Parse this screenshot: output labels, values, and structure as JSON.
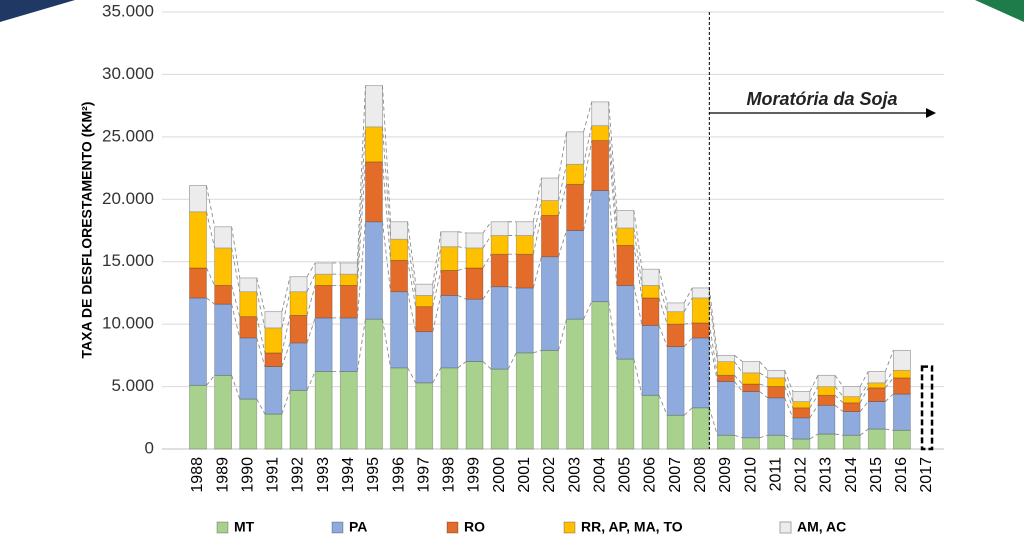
{
  "chart_data": {
    "type": "stacked-bar",
    "y_label": "TAXA DE DESFLORESTAMENTO (KM²)",
    "categories": [
      "1988",
      "1989",
      "1990",
      "1991",
      "1992",
      "1993",
      "1994",
      "1995",
      "1996",
      "1997",
      "1998",
      "1999",
      "2000",
      "2001",
      "2002",
      "2003",
      "2004",
      "2005",
      "2006",
      "2007",
      "2008",
      "2009",
      "2010",
      "2011",
      "2012",
      "2013",
      "2014",
      "2015",
      "2016",
      "2017"
    ],
    "series": [
      {
        "name": "MT",
        "color": "#a9d18e",
        "values": [
          5100,
          5900,
          4000,
          2800,
          4700,
          6200,
          6200,
          10400,
          6500,
          5300,
          6500,
          7000,
          6400,
          7700,
          7900,
          10400,
          11800,
          7200,
          4300,
          2700,
          3300,
          1100,
          900,
          1100,
          800,
          1200,
          1100,
          1600,
          1500,
          null
        ]
      },
      {
        "name": "PA",
        "color": "#8faadc",
        "values": [
          7000,
          5700,
          4900,
          3800,
          3800,
          4300,
          4300,
          7800,
          6100,
          4100,
          5800,
          5000,
          6600,
          5200,
          7500,
          7100,
          8900,
          5900,
          5600,
          5500,
          5600,
          4300,
          3700,
          3000,
          1700,
          2300,
          1900,
          2200,
          2900,
          null
        ]
      },
      {
        "name": "RO",
        "color": "#e46c2b",
        "values": [
          2400,
          1500,
          1700,
          1100,
          2200,
          2600,
          2600,
          4800,
          2500,
          2000,
          2000,
          2500,
          2600,
          2700,
          3300,
          3700,
          4000,
          3200,
          2200,
          1800,
          1200,
          500,
          600,
          900,
          800,
          800,
          700,
          1100,
          1300,
          null
        ]
      },
      {
        "name": "RR, AP, MA, TO",
        "color": "#ffc000",
        "values": [
          4500,
          3000,
          2000,
          2000,
          1900,
          900,
          900,
          2800,
          1700,
          900,
          1900,
          1600,
          1500,
          1500,
          1200,
          1600,
          1200,
          1400,
          1000,
          1000,
          2000,
          1100,
          900,
          700,
          500,
          700,
          500,
          400,
          600,
          null
        ]
      },
      {
        "name": "AM, AC",
        "color": "#ececec",
        "values": [
          2100,
          1700,
          1100,
          1300,
          1200,
          900,
          900,
          3300,
          1400,
          900,
          1200,
          1200,
          1100,
          1100,
          1800,
          2600,
          1900,
          1400,
          1300,
          700,
          800,
          500,
          900,
          600,
          800,
          900,
          800,
          900,
          1600,
          null
        ]
      }
    ],
    "outline_bar": {
      "category": "2017",
      "value": 6600
    },
    "annotation": {
      "text": "Moratória da Soja",
      "divider_after": "2008"
    },
    "ylim": [
      0,
      35000
    ],
    "yticks": [
      0,
      {
        "value": 5000,
        "label": "5.000"
      },
      {
        "value": 10000,
        "label": "10.000"
      },
      {
        "value": 15000,
        "label": "15.000"
      },
      {
        "value": 20000,
        "label": "20.000"
      },
      {
        "value": 25000,
        "label": "25.000"
      },
      {
        "value": 30000,
        "label": "30.000"
      },
      {
        "value": 35000,
        "label": "35.000"
      }
    ],
    "grid": true
  }
}
